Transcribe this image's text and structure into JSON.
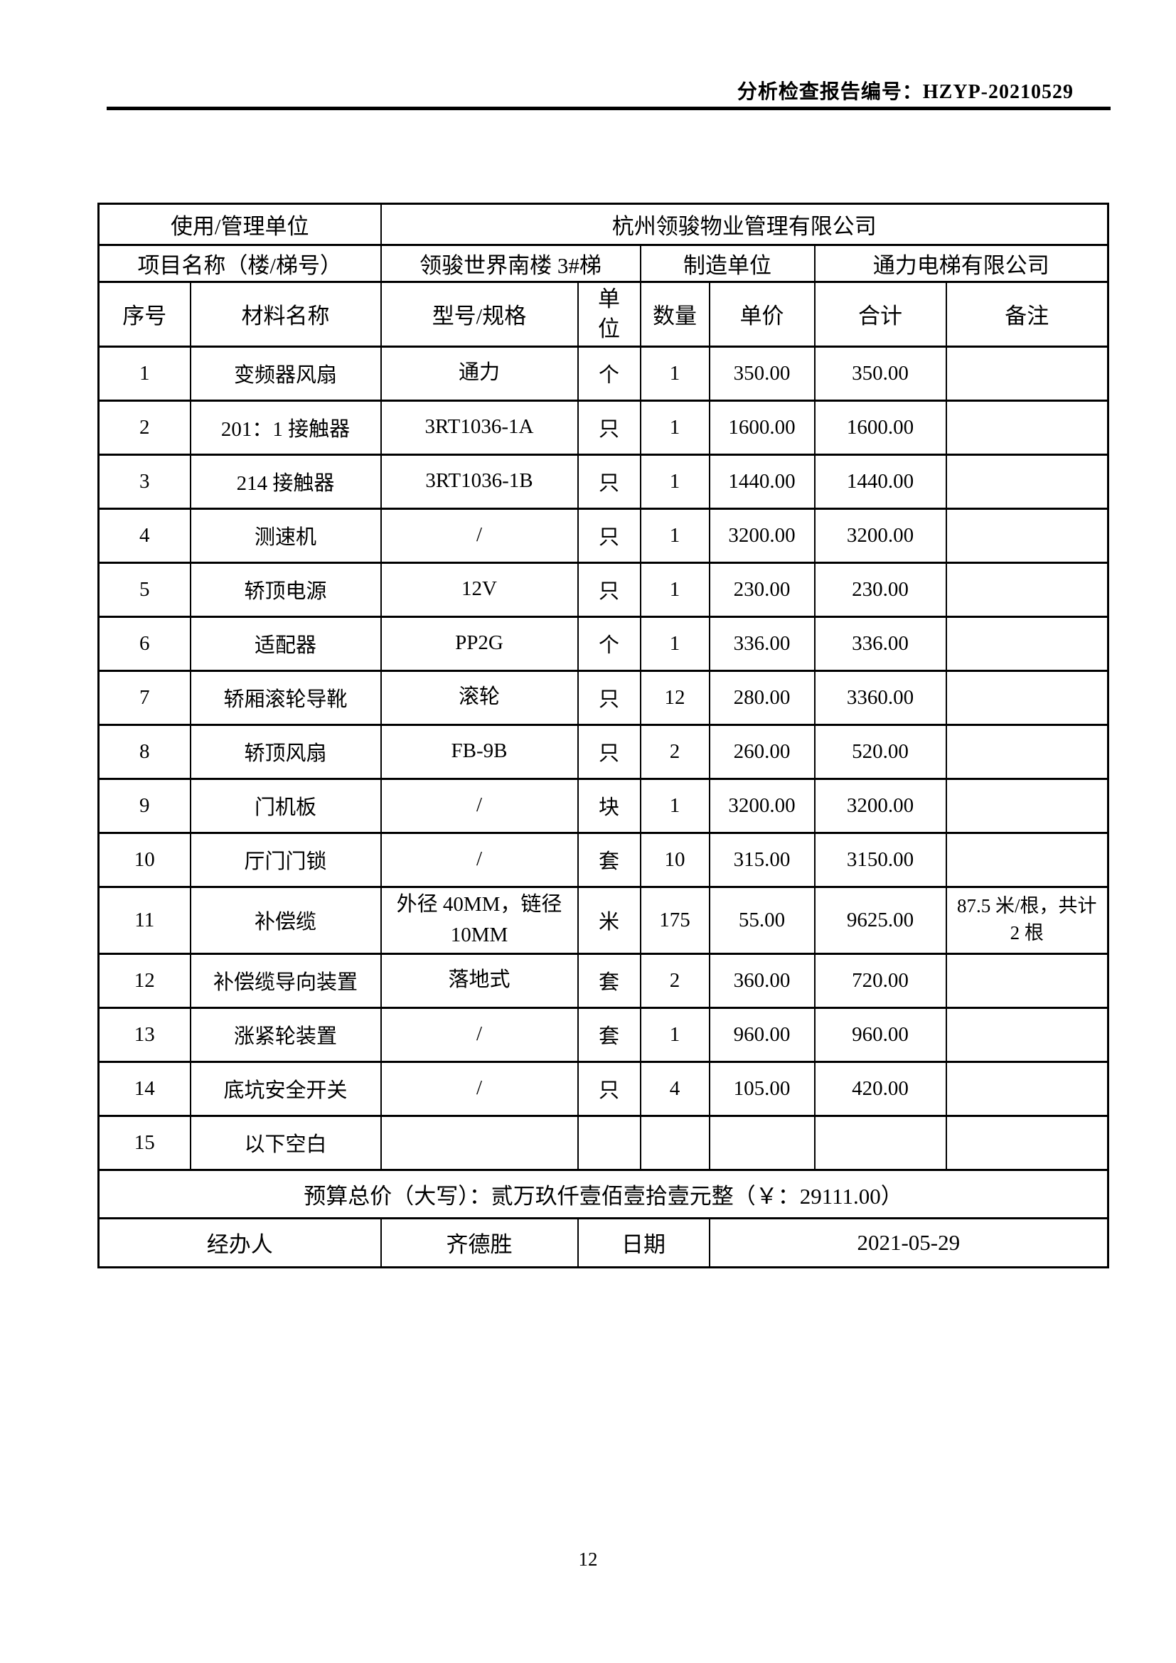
{
  "page": {
    "report_no": "分析检查报告编号：HZYP-20210529",
    "page_number": "12"
  },
  "info": {
    "use_unit_label": "使用/管理单位",
    "use_unit_value": "杭州领骏物业管理有限公司",
    "project_label": "项目名称（楼/梯号）",
    "project_value": "领骏世界南楼 3#梯",
    "manufacturer_label": "制造单位",
    "manufacturer_value": "通力电梯有限公司"
  },
  "table": {
    "headers": {
      "seq": "序号",
      "name": "材料名称",
      "model": "型号/规格",
      "unit": "单位",
      "qty": "数量",
      "price": "单价",
      "total": "合计",
      "note": "备注"
    },
    "column_keys": [
      "seq",
      "name",
      "model",
      "unit",
      "qty",
      "price",
      "total",
      "note"
    ],
    "rows": [
      {
        "seq": "1",
        "name": "变频器风扇",
        "model": "通力",
        "unit": "个",
        "qty": "1",
        "price": "350.00",
        "total": "350.00",
        "note": ""
      },
      {
        "seq": "2",
        "name": "201：1 接触器",
        "model": "3RT1036-1A",
        "unit": "只",
        "qty": "1",
        "price": "1600.00",
        "total": "1600.00",
        "note": ""
      },
      {
        "seq": "3",
        "name": "214 接触器",
        "model": "3RT1036-1B",
        "unit": "只",
        "qty": "1",
        "price": "1440.00",
        "total": "1440.00",
        "note": ""
      },
      {
        "seq": "4",
        "name": "测速机",
        "model": "/",
        "unit": "只",
        "qty": "1",
        "price": "3200.00",
        "total": "3200.00",
        "note": ""
      },
      {
        "seq": "5",
        "name": "轿顶电源",
        "model": "12V",
        "unit": "只",
        "qty": "1",
        "price": "230.00",
        "total": "230.00",
        "note": ""
      },
      {
        "seq": "6",
        "name": "适配器",
        "model": "PP2G",
        "unit": "个",
        "qty": "1",
        "price": "336.00",
        "total": "336.00",
        "note": ""
      },
      {
        "seq": "7",
        "name": "轿厢滚轮导靴",
        "model": "滚轮",
        "unit": "只",
        "qty": "12",
        "price": "280.00",
        "total": "3360.00",
        "note": ""
      },
      {
        "seq": "8",
        "name": "轿顶风扇",
        "model": "FB-9B",
        "unit": "只",
        "qty": "2",
        "price": "260.00",
        "total": "520.00",
        "note": ""
      },
      {
        "seq": "9",
        "name": "门机板",
        "model": "/",
        "unit": "块",
        "qty": "1",
        "price": "3200.00",
        "total": "3200.00",
        "note": ""
      },
      {
        "seq": "10",
        "name": "厅门门锁",
        "model": "/",
        "unit": "套",
        "qty": "10",
        "price": "315.00",
        "total": "3150.00",
        "note": ""
      },
      {
        "seq": "11",
        "name": "补偿缆",
        "model": "外径 40MM，链径 10MM",
        "unit": "米",
        "qty": "175",
        "price": "55.00",
        "total": "9625.00",
        "note": "87.5 米/根，共计 2 根"
      },
      {
        "seq": "12",
        "name": "补偿缆导向装置",
        "model": "落地式",
        "unit": "套",
        "qty": "2",
        "price": "360.00",
        "total": "720.00",
        "note": ""
      },
      {
        "seq": "13",
        "name": "涨紧轮装置",
        "model": "/",
        "unit": "套",
        "qty": "1",
        "price": "960.00",
        "total": "960.00",
        "note": ""
      },
      {
        "seq": "14",
        "name": "底坑安全开关",
        "model": "/",
        "unit": "只",
        "qty": "4",
        "price": "105.00",
        "total": "420.00",
        "note": ""
      },
      {
        "seq": "15",
        "name": "以下空白",
        "model": "",
        "unit": "",
        "qty": "",
        "price": "",
        "total": "",
        "note": ""
      }
    ],
    "grand_total_text": "预算总价（大写）：贰万玖仟壹佰壹拾壹元整（￥：29111.00）",
    "handler_label": "经办人",
    "handler_value": "齐德胜",
    "date_label": "日期",
    "date_value": "2021-05-29"
  }
}
